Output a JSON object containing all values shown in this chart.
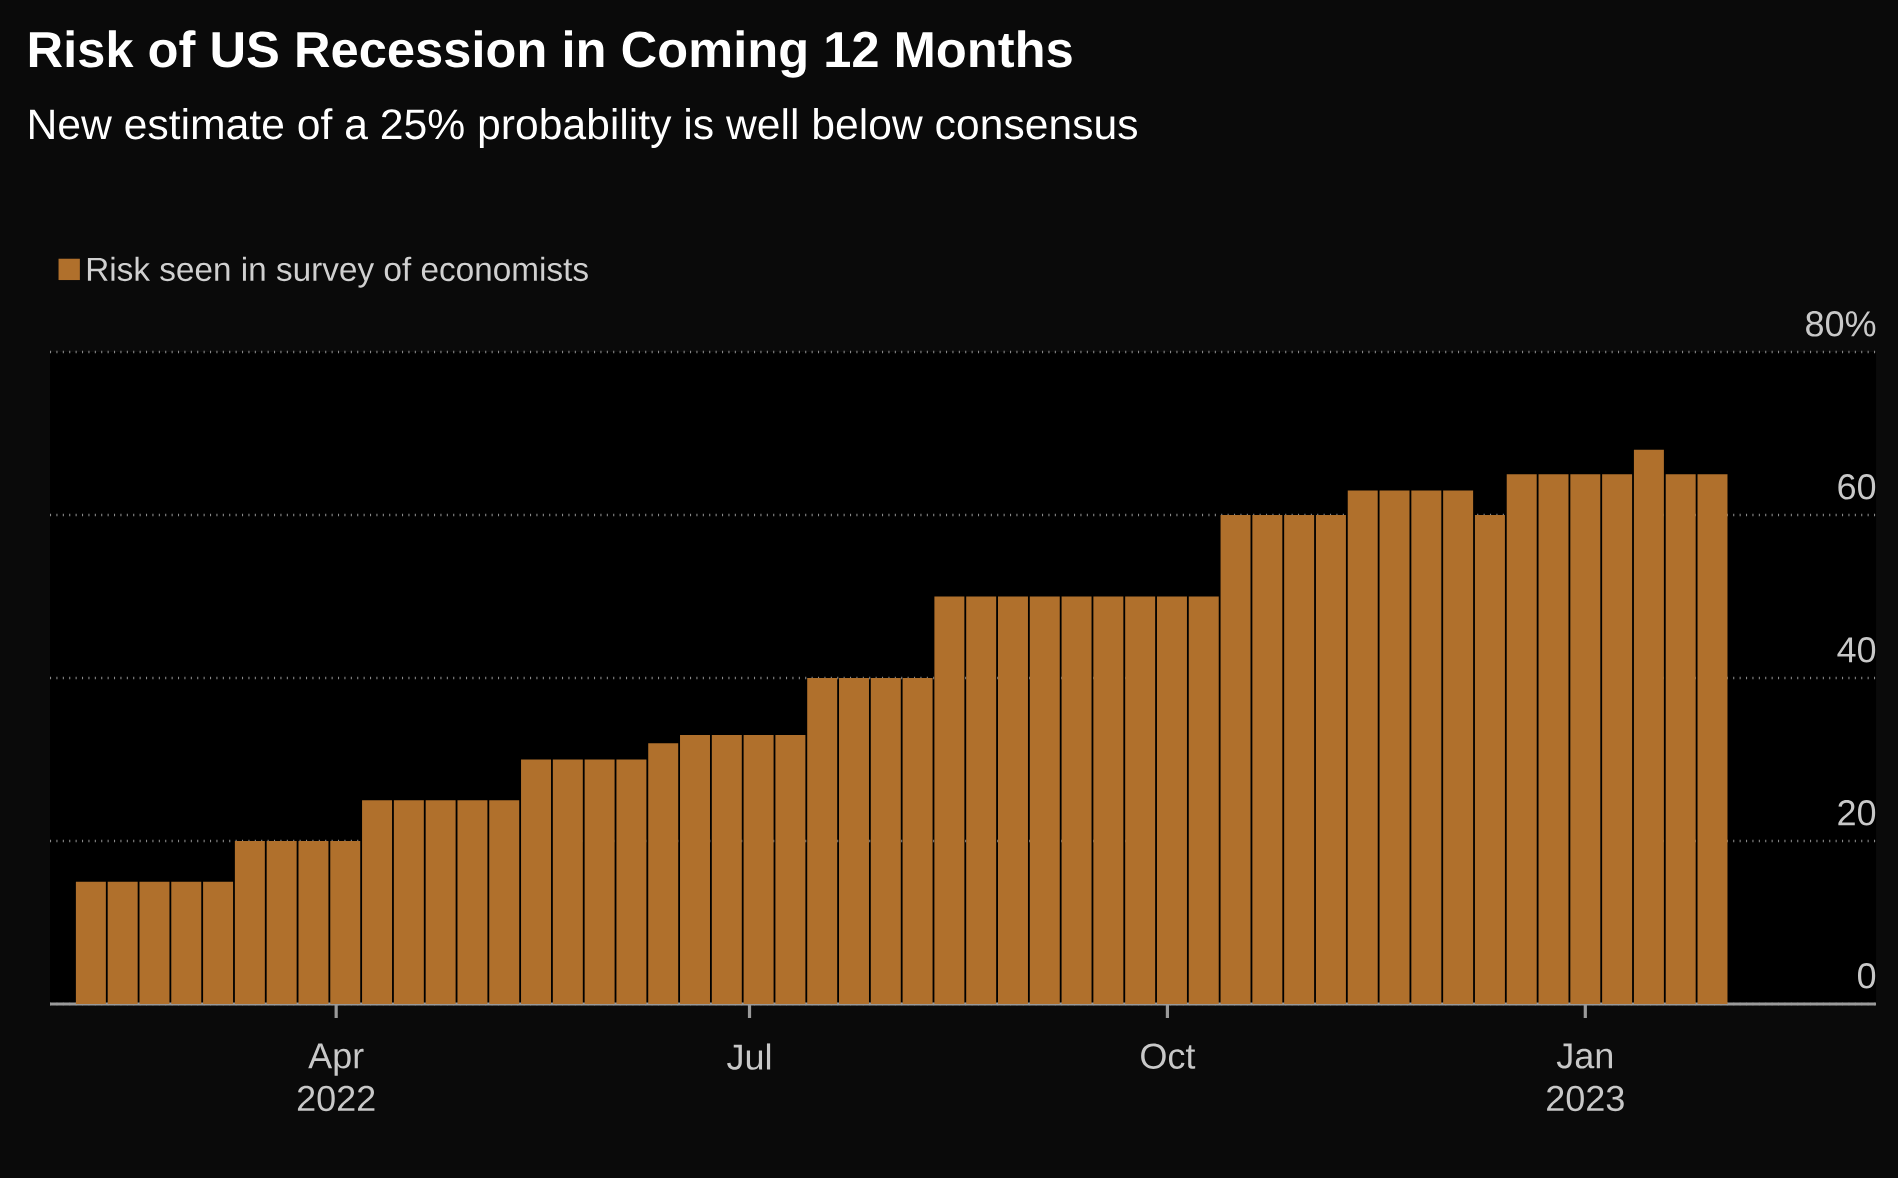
{
  "chart_data": {
    "type": "bar",
    "title": "Risk of US Recession in Coming 12 Months",
    "subtitle": "New estimate of a 25% probability is well below consensus",
    "x": [
      "2022-02-06",
      "2022-02-13",
      "2022-02-20",
      "2022-02-27",
      "2022-03-06",
      "2022-03-13",
      "2022-03-20",
      "2022-03-27",
      "2022-04-03",
      "2022-04-10",
      "2022-04-17",
      "2022-04-24",
      "2022-05-01",
      "2022-05-08",
      "2022-05-15",
      "2022-05-22",
      "2022-05-29",
      "2022-06-05",
      "2022-06-12",
      "2022-06-19",
      "2022-06-26",
      "2022-07-03",
      "2022-07-10",
      "2022-07-17",
      "2022-07-24",
      "2022-07-31",
      "2022-08-07",
      "2022-08-14",
      "2022-08-21",
      "2022-08-28",
      "2022-09-04",
      "2022-09-11",
      "2022-09-18",
      "2022-09-25",
      "2022-10-02",
      "2022-10-09",
      "2022-10-16",
      "2022-10-23",
      "2022-10-30",
      "2022-11-06",
      "2022-11-13",
      "2022-11-20",
      "2022-11-27",
      "2022-12-04",
      "2022-12-11",
      "2022-12-18",
      "2022-12-25",
      "2023-01-01",
      "2023-01-08",
      "2023-01-15",
      "2023-01-22",
      "2023-01-29"
    ],
    "series": [
      {
        "name": "Risk seen in survey of economists",
        "color": "#b0702c",
        "values": [
          15,
          15,
          15,
          15,
          15,
          20,
          20,
          20,
          20,
          25,
          25,
          25,
          25,
          25,
          30,
          30,
          30,
          30,
          32,
          33,
          33,
          33,
          33,
          40,
          40,
          40,
          40,
          50,
          50,
          50,
          50,
          50,
          50,
          50,
          50,
          50,
          60,
          60,
          60,
          60,
          63,
          63,
          63,
          63,
          60,
          65,
          65,
          65,
          65,
          68,
          65,
          65
        ]
      }
    ],
    "xlim": [
      "2022-01-28",
      "2023-03-06"
    ],
    "xticks": [
      {
        "value": "2022-04-01",
        "label": "Apr 2022"
      },
      {
        "value": "2022-07-01",
        "label": "Jul"
      },
      {
        "value": "2022-10-01",
        "label": "Oct"
      },
      {
        "value": "2023-01-01",
        "label": "Jan 2023"
      }
    ],
    "ylim": [
      0,
      80
    ],
    "yticks": [
      0,
      20,
      40,
      60,
      {
        "value": 80,
        "label": "80%"
      }
    ],
    "grid": "y",
    "legend": "top left"
  }
}
